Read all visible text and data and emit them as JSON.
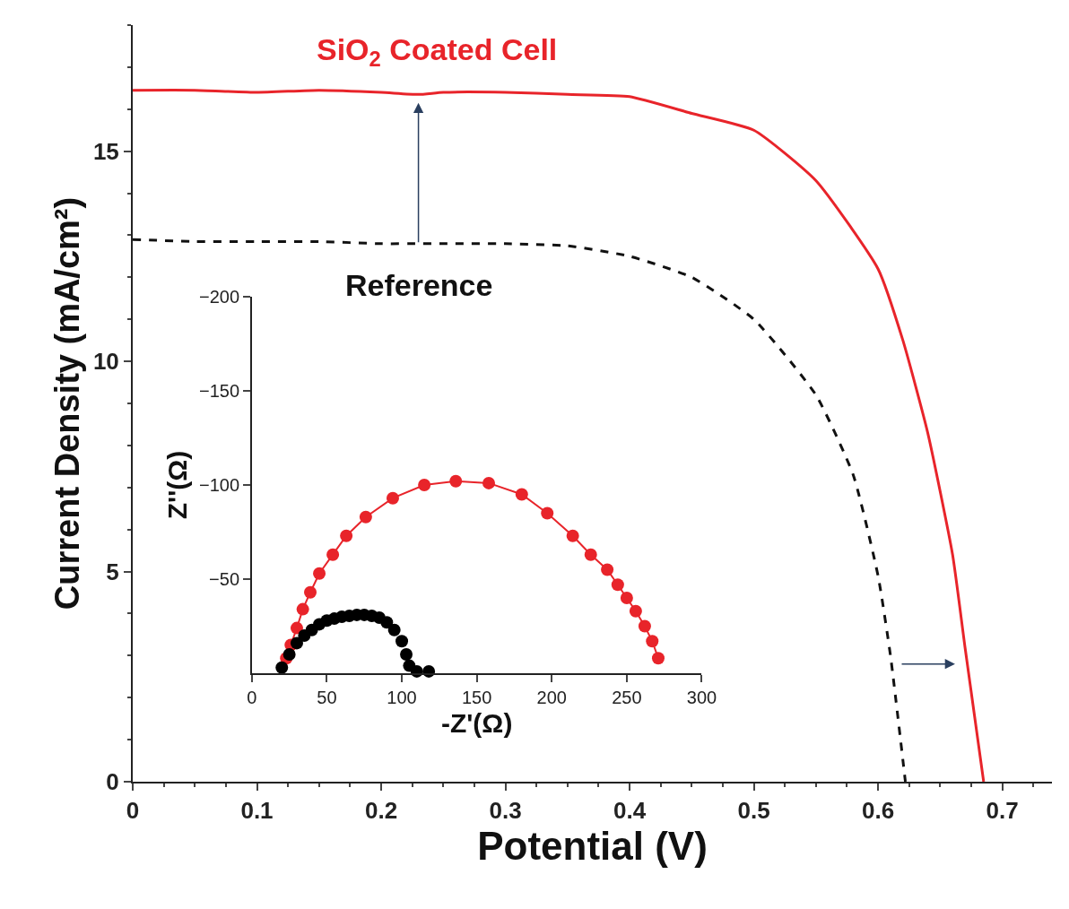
{
  "chart_data": [
    {
      "type": "line",
      "xlabel": "Potential (V)",
      "ylabel": "Current Density (mA/cm²)",
      "xlim": [
        0,
        0.74
      ],
      "ylim": [
        0,
        18
      ],
      "xticks": [
        0,
        0.1,
        0.2,
        0.3,
        0.4,
        0.5,
        0.6,
        0.7
      ],
      "yticks": [
        0,
        5,
        10,
        15
      ],
      "grid": false,
      "legend": false,
      "marker": "none",
      "series": [
        {
          "name": "SiO$_{2}$ Coated Cell",
          "color": "#e8242a",
          "line_style": "solid",
          "x": [
            0,
            0.05,
            0.1,
            0.15,
            0.2,
            0.23,
            0.25,
            0.3,
            0.35,
            0.4,
            0.45,
            0.5,
            0.55,
            0.6,
            0.62,
            0.64,
            0.66,
            0.67,
            0.685
          ],
          "values": [
            16.45,
            16.45,
            16.4,
            16.45,
            16.4,
            16.35,
            16.4,
            16.4,
            16.35,
            16.3,
            15.9,
            15.5,
            14.3,
            12.2,
            10.5,
            8.3,
            5.4,
            3.2,
            0
          ]
        },
        {
          "name": "Reference",
          "color": "#111111",
          "line_style": "dashed",
          "x": [
            0,
            0.05,
            0.1,
            0.15,
            0.2,
            0.23,
            0.25,
            0.3,
            0.35,
            0.4,
            0.45,
            0.5,
            0.55,
            0.58,
            0.6,
            0.61,
            0.622
          ],
          "values": [
            12.9,
            12.85,
            12.85,
            12.85,
            12.8,
            12.8,
            12.8,
            12.8,
            12.75,
            12.5,
            12.0,
            11.0,
            9.2,
            7.3,
            4.9,
            3.0,
            0
          ]
        }
      ]
    },
    {
      "type": "line",
      "xlabel": "-Z'(Ω)",
      "ylabel": "Z''(Ω)",
      "xlim": [
        0,
        300
      ],
      "ylim": [
        0,
        -200
      ],
      "xticks": [
        0,
        50,
        100,
        150,
        200,
        250,
        300
      ],
      "yticks": [
        -50,
        -100,
        -150,
        -200
      ],
      "grid": false,
      "legend": false,
      "marker": "circle",
      "series": [
        {
          "color": "#e8242a",
          "line_style": "solid",
          "x": [
            23,
            26,
            30,
            34,
            39,
            45,
            54,
            63,
            76,
            94,
            115,
            136,
            158,
            180,
            197,
            214,
            226,
            237,
            244,
            250,
            256,
            262,
            267,
            271
          ],
          "values": [
            -8,
            -15,
            -24,
            -34,
            -43,
            -53,
            -63,
            -73,
            -83,
            -93,
            -100,
            -102,
            -101,
            -95,
            -85,
            -73,
            -63,
            -55,
            -47,
            -40,
            -33,
            -25,
            -17,
            -8
          ]
        },
        {
          "type": "scatter",
          "color": "#000000",
          "x": [
            20,
            25,
            30,
            35,
            40,
            45,
            50,
            55,
            60,
            65,
            70,
            75,
            80,
            85,
            90,
            95,
            100,
            103,
            105,
            110,
            118
          ],
          "values": [
            -3,
            -10,
            -16,
            -20,
            -23,
            -26,
            -28,
            -29,
            -30,
            -30.5,
            -31,
            -31,
            -30.5,
            -29.5,
            -27,
            -23,
            -17,
            -10,
            -4,
            -1,
            -1
          ]
        }
      ]
    }
  ]
}
